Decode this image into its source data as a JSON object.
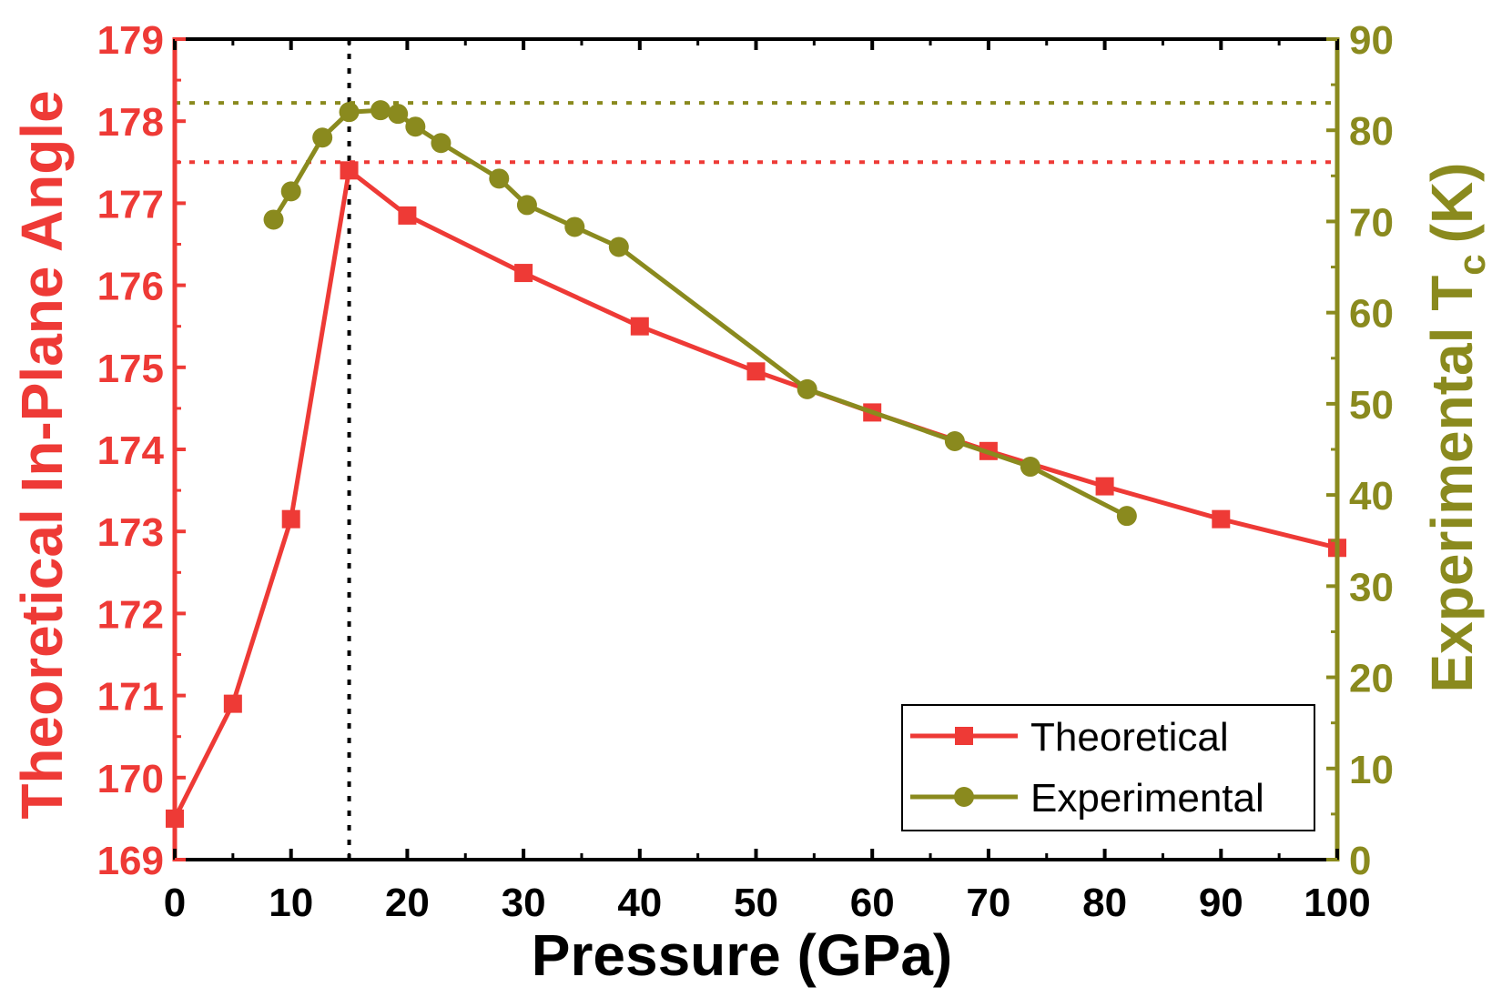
{
  "chart_data": {
    "type": "line",
    "title": "",
    "xlabel": "Pressure (GPa)",
    "ylabel_left": "Theoretical In-Plane Angle",
    "ylabel_right_main": "Experimental T",
    "ylabel_right_sub": "c",
    "ylabel_right_unit": "(K)",
    "xlim": [
      0,
      100
    ],
    "ylim_left": [
      169,
      179
    ],
    "ylim_right": [
      0,
      90
    ],
    "x_ticks": [
      "0",
      "10",
      "20",
      "30",
      "40",
      "50",
      "60",
      "70",
      "80",
      "90",
      "100"
    ],
    "y_left_ticks": [
      "169",
      "170",
      "171",
      "172",
      "173",
      "174",
      "175",
      "176",
      "177",
      "178",
      "179"
    ],
    "y_right_ticks": [
      "0",
      "10",
      "20",
      "30",
      "40",
      "50",
      "60",
      "70",
      "80",
      "90"
    ],
    "series": [
      {
        "name": "Theoretical",
        "axis": "left",
        "color": "#ee3a36",
        "marker": "square",
        "x": [
          0,
          5,
          10,
          15,
          20,
          30,
          40,
          50,
          60,
          70,
          80,
          90,
          100
        ],
        "y": [
          169.5,
          170.9,
          173.15,
          177.4,
          176.85,
          176.15,
          175.5,
          174.95,
          174.45,
          173.98,
          173.55,
          173.15,
          172.8
        ]
      },
      {
        "name": "Experimental",
        "axis": "right",
        "color": "#8a8a1e",
        "marker": "circle",
        "x": [
          8.5,
          10,
          12.7,
          15,
          17.7,
          19.2,
          20.7,
          22.9,
          27.9,
          30.3,
          34.4,
          38.2,
          54.4,
          67.1,
          73.6,
          81.9
        ],
        "y": [
          70.2,
          73.3,
          79.2,
          82,
          82.2,
          81.8,
          80.4,
          78.6,
          74.7,
          71.8,
          69.4,
          67.2,
          51.6,
          45.9,
          43.1,
          37.7
        ]
      }
    ],
    "reference_lines": [
      {
        "orientation": "vertical",
        "axis": "x",
        "value": 15,
        "color": "#000000",
        "style": "dotted"
      },
      {
        "orientation": "horizontal",
        "axis": "left",
        "value": 177.5,
        "color": "#ee3a36",
        "style": "dotted"
      },
      {
        "orientation": "horizontal",
        "axis": "right",
        "value": 83,
        "color": "#8a8a1e",
        "style": "dotted"
      }
    ],
    "legend": {
      "position": "bottom-right",
      "entries": [
        "Theoretical",
        "Experimental"
      ]
    },
    "colors": {
      "left_axis": "#ee3a36",
      "right_axis": "#8a8a1e",
      "frame": "#000000"
    }
  }
}
